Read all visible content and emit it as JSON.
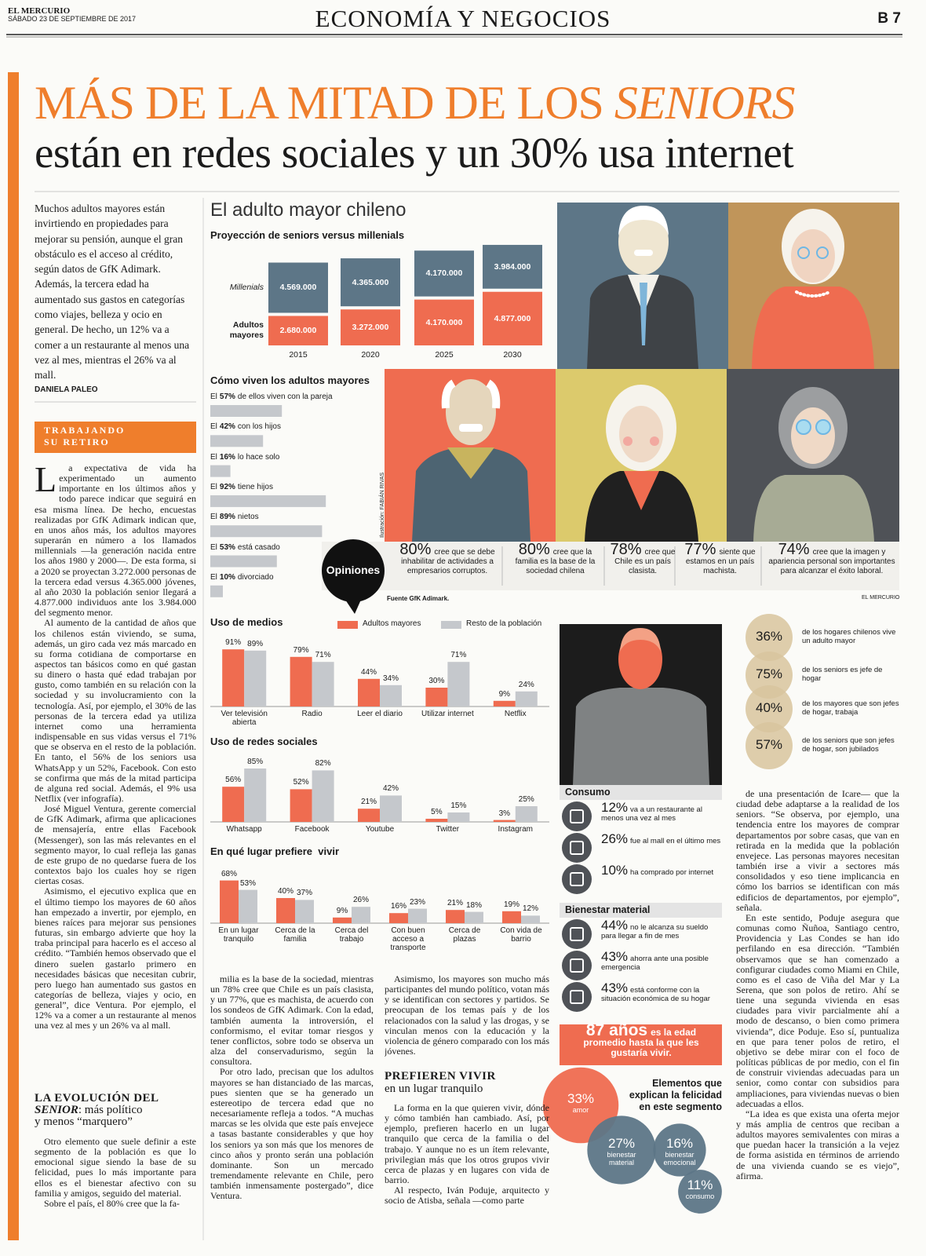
{
  "header": {
    "paper": "EL MERCURIO",
    "date": "SÁBADO 23 DE SEPTIEMBRE DE 2017",
    "section": "ECONOMÍA Y NEGOCIOS",
    "page": "B 7"
  },
  "headline": {
    "part1": "MÁS DE LA MITAD DE LOS ",
    "part2": "SENIORS",
    "line2": "están en redes sociales y un 30% usa internet"
  },
  "lead": {
    "text": "Muchos adultos mayores están invirtiendo en propiedades para mejorar su pensión, aunque el gran obstáculo es el acceso al crédito, según datos de GfK Adimark. Además, la tercera edad ha aumentado sus gastos en categorías como viajes, belleza y ocio en general. De hecho, un 12% va a comer a un restaurante al menos una vez al mes, mientras el 26% va al mall.",
    "author": "DANIELA PALEO"
  },
  "kicker": [
    "TRABAJANDO",
    "SU RETIRO"
  ],
  "body": {
    "col1": [
      "La expectativa de vida ha experimentado un aumento importante en los últimos años y todo parece indicar que seguirá en esa misma línea. De hecho, encuestas realizadas por GfK Adimark indican que, en unos años más, los adultos mayores superarán en número a los llamados millennials —la generación nacida entre los años 1980 y 2000—. De esta forma, si a 2020 se proyectan 3.272.000 personas de la tercera edad versus 4.365.000 jóvenes, al año 2030 la población senior llegará a 4.877.000 individuos ante los 3.984.000 del segmento menor.",
      "Al aumento de la cantidad de años que los chilenos están viviendo, se suma, además, un giro cada vez más marcado en su forma cotidiana de comportarse en aspectos tan básicos como en qué gastan su dinero o hasta qué edad trabajan por gusto, como también en su relación con la sociedad y su involucramiento con la tecnología. Así, por ejemplo, el 30% de las personas de la tercera edad ya utiliza internet como una herramienta indispensable en sus vidas versus el 71% que se observa en el resto de la población. En tanto, el 56% de los seniors usa WhatsApp y un 52%, Facebook. Con esto se confirma que más de la mitad participa de alguna red social. Además, el 9% usa Netflix (ver infografía).",
      "José Miguel Ventura, gerente comercial de GfK Adimark, afirma que aplicaciones de mensajería, entre ellas Facebook (Messenger), son las más relevantes en el segmento mayor, lo cual refleja las ganas de este grupo de no quedarse fuera de los contextos bajo los cuales hoy se rigen ciertas cosas.",
      "Asimismo, el ejecutivo explica que en el último tiempo los mayores de 60 años han empezado a invertir, por ejemplo, en bienes raíces para mejorar sus pensiones futuras, sin embargo advierte que hoy la traba principal para hacerlo es el acceso al crédito. “También hemos observado que el dinero suelen gastarlo primero en necesidades básicas que necesitan cubrir, pero luego han aumentado sus gastos en categorías de belleza, viajes y ocio, en general”, dice Ventura. Por ejemplo, el 12% va a comer a un restaurante al menos una vez al mes y un 26% va al mall."
    ],
    "subhead1": {
      "a": "LA EVOLUCIÓN DEL ",
      "b": "SENIOR",
      "c": ": más político",
      "d": "y menos “marquero”"
    },
    "col1b": [
      "Otro elemento que suele definir a este segmento de la población es que lo emocional sigue siendo la base de su felicidad, pues lo más importante para ellos es el bienestar afectivo con su familia y amigos, seguido del material.",
      "Sobre el país, el 80% cree que la fa-"
    ],
    "col2": [
      "milia es la base de la sociedad, mientras un 78% cree que Chile es un país clasista, y un 77%, que es machista, de acuerdo con los sondeos de GfK Adimark. Con la edad, también aumenta la introversión, el conformismo, el evitar tomar riesgos y tener conflictos, sobre todo se observa un alza del conservadurismo, según la consultora.",
      "Por otro lado, precisan que los adultos mayores se han distanciado de las marcas, pues sienten que se ha generado un estereotipo de tercera edad que no necesariamente refleja a todos. “A muchas marcas se les olvida que este país envejece a tasas bastante considerables y que hoy los seniors ya son más que los menores de cinco años y pronto serán una población dominante. Son un mercado tremendamente relevante en Chile, pero también inmensamente postergado”, dice Ventura."
    ],
    "col3": [
      "Asimismo, los mayores son mucho más participantes del mundo político, votan más y se identifican con sectores y partidos. Se preocupan de los temas país y de los relacionados con la salud y las drogas, y se vinculan menos con la educación y la violencia de género comparado con los más jóvenes."
    ],
    "subhead2": {
      "a": "PREFIEREN VIVIR",
      "b": "en un lugar tranquilo"
    },
    "col3b": [
      "La forma en la que quieren vivir, dónde y cómo también han cambiado. Así, por ejemplo, prefieren hacerlo en un lugar tranquilo que cerca de la familia o del trabajo. Y aunque no es un ítem relevante, privilegian más que los otros grupos vivir cerca de plazas y en lugares con vida de barrio.",
      "Al respecto, Iván Poduje, arquitecto y socio de Atisba, señala —como parte"
    ],
    "col4": [
      "de una presentación de Icare— que la ciudad debe adaptarse a la realidad de los seniors. “Se observa, por ejemplo, una tendencia entre los mayores de comprar departamentos por sobre casas, que van en retirada en la medida que la población envejece. Las personas mayores necesitan también irse a vivir a sectores más consolidados y eso tiene implicancia en cómo los barrios se identifican con más edificios de departamentos, por ejemplo”, señala.",
      "En este sentido, Poduje asegura que comunas como Ñuñoa, Santiago centro, Providencia y Las Condes se han ido perfilando en esa dirección. “También observamos que se han comenzado a configurar ciudades como Miami en Chile, como es el caso de Viña del Mar y La Serena, que son polos de retiro. Ahí se tiene una segunda vivienda en esas ciudades para vivir parcialmente ahí a modo de descanso, o bien como primera vivienda”, dice Poduje. Eso sí, puntualiza en que para tener polos de retiro, el objetivo se debe mirar con el foco de políticas públicas de por medio, con el fin de construir viviendas adecuadas para un senior, como contar con subsidios para ampliaciones, para viviendas nuevas o bien adecuadas a ellos.",
      "“La idea es que exista una oferta mejor y más amplia de centros que reciban a adultos mayores semivalentes con miras a que puedan hacer la transición a la vejez de forma asistida en términos de arriendo de una vivienda cuando se es viejo”, afirma."
    ]
  },
  "infographic": {
    "title": "El adulto mayor chileno",
    "projection": {
      "type": "bar",
      "title": "Proyección de seniors versus millenials",
      "categories": [
        "2015",
        "2020",
        "2025",
        "2030"
      ],
      "series": [
        {
          "name": "Adultos mayores",
          "color": "#ef6c50",
          "values": [
            2680000,
            3272000,
            4170000,
            4877000
          ],
          "value_labels": [
            "2.680.000",
            "3.272.000",
            "4.170.000",
            "4.877.000"
          ]
        },
        {
          "name": "Millenials",
          "color": "#5d7687",
          "values": [
            4569000,
            4365000,
            4170000,
            3984000
          ],
          "value_labels": [
            "4.569.000",
            "4.365.000",
            "4.170.000",
            "3.984.000"
          ]
        }
      ]
    },
    "living": {
      "title": "Cómo viven los adultos mayores",
      "color": "#c5c8cc",
      "items": [
        {
          "prefix": "El",
          "value": 57,
          "value_label": "57%",
          "text": "de ellos viven con la pareja"
        },
        {
          "prefix": "El",
          "value": 42,
          "value_label": "42%",
          "text": "con los hijos"
        },
        {
          "prefix": "El",
          "value": 16,
          "value_label": "16%",
          "text": "lo hace solo"
        },
        {
          "prefix": "El",
          "value": 92,
          "value_label": "92%",
          "text": "tiene hijos"
        },
        {
          "prefix": "El",
          "value": 89,
          "value_label": "89%",
          "text": "nietos"
        },
        {
          "prefix": "El",
          "value": 53,
          "value_label": "53%",
          "text": "está casado"
        },
        {
          "prefix": "El",
          "value": 10,
          "value_label": "10%",
          "text": "divorciado"
        }
      ]
    },
    "credit": "Ilustración: FABIÁN RIVAS",
    "opinions": {
      "label": "Opiniones",
      "items": [
        {
          "value": 80,
          "value_label": "80%",
          "text": "cree que se debe inhabilitar de actividades a empresarios corruptos."
        },
        {
          "value": 80,
          "value_label": "80%",
          "text": "cree que la familia es la base de la sociedad chilena"
        },
        {
          "value": 78,
          "value_label": "78%",
          "text": "cree que Chile es un país clasista."
        },
        {
          "value": 77,
          "value_label": "77%",
          "text": "siente que estamos en un país machista."
        },
        {
          "value": 74,
          "value_label": "74%",
          "text": "cree que la imagen y apariencia personal son importantes para alcanzar el éxito laboral."
        }
      ]
    },
    "source": "Fuente GfK Adimark.",
    "brand": "EL MERCURIO",
    "media": {
      "type": "bar",
      "title": "Uso de medios",
      "categories": [
        "Ver televisión abierta",
        "Radio",
        "Leer el diario",
        "Utilizar internet",
        "Netflix"
      ],
      "series": [
        {
          "name": "Adultos mayores",
          "color": "#ef6c50",
          "values": [
            91,
            79,
            44,
            30,
            9
          ],
          "value_labels": [
            "91%",
            "79%",
            "44%",
            "30%",
            "9%"
          ]
        },
        {
          "name": "Resto de la población",
          "color": "#c5c8cc",
          "values": [
            89,
            71,
            34,
            71,
            24
          ],
          "value_labels": [
            "89%",
            "71%",
            "34%",
            "71%",
            "24%"
          ]
        }
      ]
    },
    "social": {
      "type": "bar",
      "title": "Uso de redes sociales",
      "categories": [
        "Whatsapp",
        "Facebook",
        "Youtube",
        "Twitter",
        "Instagram"
      ],
      "series": [
        {
          "color": "#ef6c50",
          "values": [
            56,
            52,
            21,
            5,
            3
          ],
          "value_labels": [
            "56%",
            "52%",
            "21%",
            "5%",
            "3%"
          ]
        },
        {
          "color": "#c5c8cc",
          "values": [
            85,
            82,
            42,
            15,
            25
          ],
          "value_labels": [
            "85%",
            "82%",
            "42%",
            "15%",
            "25%"
          ]
        }
      ]
    },
    "place": {
      "type": "bar",
      "title": "En qué lugar prefiere  vivir",
      "categories": [
        "En un lugar tranquilo",
        "Cerca de la familia",
        "Cerca del trabajo",
        "Con buen acceso a transporte",
        "Cerca de plazas",
        "Con vida de barrio"
      ],
      "series": [
        {
          "color": "#ef6c50",
          "values": [
            68,
            40,
            9,
            16,
            21,
            19
          ],
          "value_labels": [
            "68%",
            "40%",
            "9%",
            "16%",
            "21%",
            "19%"
          ]
        },
        {
          "color": "#c5c8cc",
          "values": [
            53,
            37,
            26,
            23,
            18,
            12
          ],
          "value_labels": [
            "53%",
            "37%",
            "26%",
            "23%",
            "18%",
            "12%"
          ]
        }
      ]
    },
    "households": {
      "color": "#d8c49e",
      "items": [
        {
          "value": 36,
          "value_label": "36%",
          "text": "de los hogares chilenos vive un adulto mayor"
        },
        {
          "value": 75,
          "value_label": "75%",
          "text": "de los seniors es jefe de hogar"
        },
        {
          "value": 40,
          "value_label": "40%",
          "text": "de los mayores que son jefes de hogar, trabaja"
        },
        {
          "value": 57,
          "value_label": "57%",
          "text": "de los seniors que son jefes de hogar, son jubilados"
        }
      ]
    },
    "consumption": {
      "title": "Consumo",
      "items": [
        {
          "value": 12,
          "value_label": "12%",
          "text": "va a un restaurante al menos una vez al mes"
        },
        {
          "value": 26,
          "value_label": "26%",
          "text": "fue al mall en el último mes"
        },
        {
          "value": 10,
          "value_label": "10%",
          "text": "ha comprado por internet"
        }
      ]
    },
    "wellbeing": {
      "title": "Bienestar material",
      "items": [
        {
          "value": 44,
          "value_label": "44%",
          "text": "no le alcanza su sueldo para llegar a fin de mes"
        },
        {
          "value": 43,
          "value_label": "43%",
          "text": "ahorra ante una posible emergencia"
        },
        {
          "value": 43,
          "value_label": "43%",
          "text": "está conforme con la situación económica de su hogar"
        }
      ]
    },
    "age": {
      "value": 87,
      "value_label": "87 años",
      "text": "es la edad promedio hasta la que les gustaría vivir."
    },
    "happiness": {
      "title": "Elementos que explican la felicidad en este segmento",
      "items": [
        {
          "value": 33,
          "value_label": "33%",
          "label": "amor",
          "color": "#ef6c50"
        },
        {
          "value": 27,
          "value_label": "27%",
          "label": "bienestar material",
          "color": "#5d7687"
        },
        {
          "value": 16,
          "value_label": "16%",
          "label": "bienestar emocional",
          "color": "#5d7687"
        },
        {
          "value": 11,
          "value_label": "11%",
          "label": "consumo",
          "color": "#5d7687"
        }
      ]
    }
  }
}
